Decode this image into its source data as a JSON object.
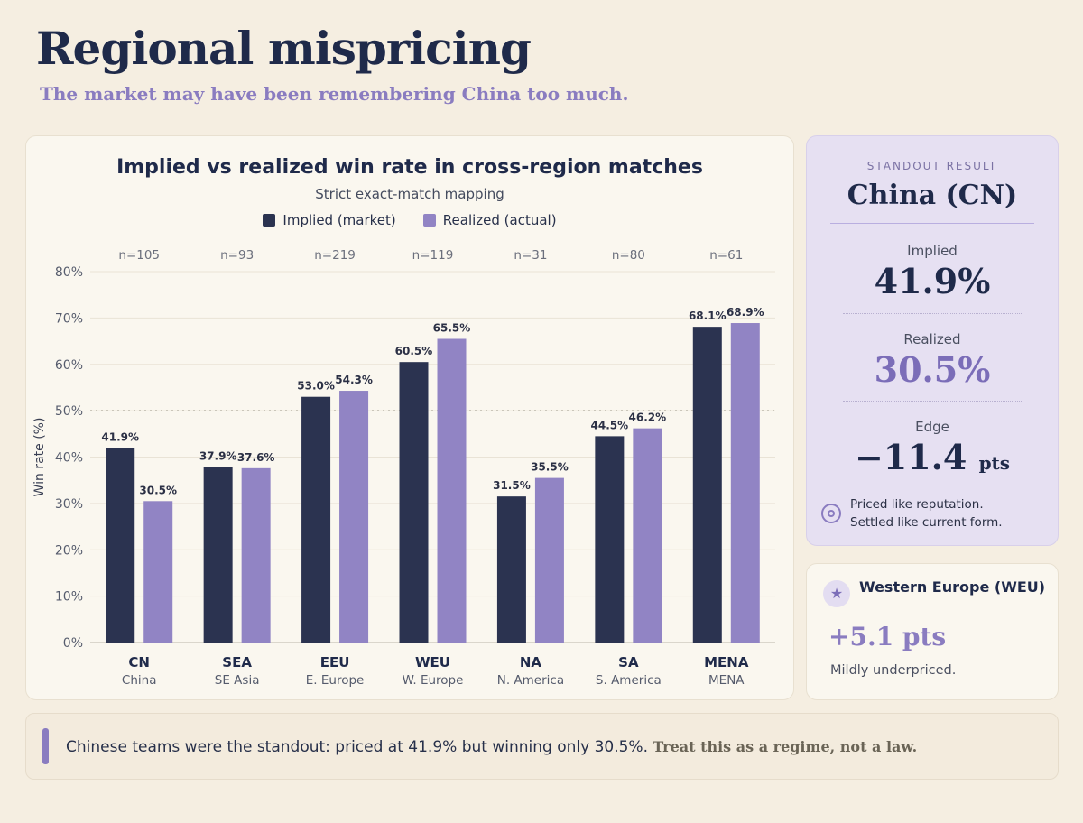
{
  "header": {
    "title": "Regional mispricing",
    "subtitle": "The market may have been remembering China too much."
  },
  "colors": {
    "implied": "#2b3350",
    "realized": "#9184c4",
    "accent": "#8a7cc0",
    "background": "#f5eee1"
  },
  "chart_data": {
    "type": "bar",
    "title": "Implied vs realized win rate in cross-region matches",
    "subtitle": "Strict exact-match mapping",
    "ylabel": "Win rate (%)",
    "ylim": [
      0,
      80
    ],
    "yticks": [
      "0%",
      "10%",
      "20%",
      "30%",
      "40%",
      "50%",
      "60%",
      "70%",
      "80%"
    ],
    "reference_line": 50,
    "grid": true,
    "legend_placement": "top-center",
    "categories": [
      "CN",
      "SEA",
      "EEU",
      "WEU",
      "NA",
      "SA",
      "MENA"
    ],
    "category_names": [
      "China",
      "SE Asia",
      "E. Europe",
      "W. Europe",
      "N. America",
      "S. America",
      "MENA"
    ],
    "sample_sizes": [
      "n=105",
      "n=93",
      "n=219",
      "n=119",
      "n=31",
      "n=80",
      "n=61"
    ],
    "series": [
      {
        "name": "Implied (market)",
        "values": [
          41.9,
          37.9,
          53.0,
          60.5,
          31.5,
          44.5,
          68.1
        ],
        "labels": [
          "41.9%",
          "37.9%",
          "53.0%",
          "60.5%",
          "31.5%",
          "44.5%",
          "68.1%"
        ]
      },
      {
        "name": "Realized (actual)",
        "values": [
          30.5,
          37.6,
          54.3,
          65.5,
          35.5,
          46.2,
          68.9
        ],
        "labels": [
          "30.5%",
          "37.6%",
          "54.3%",
          "65.5%",
          "35.5%",
          "46.2%",
          "68.9%"
        ]
      }
    ]
  },
  "standout": {
    "label": "STANDOUT RESULT",
    "name": "China (CN)",
    "implied_label": "Implied",
    "implied_value": "41.9%",
    "realized_label": "Realized",
    "realized_value": "30.5%",
    "edge_label": "Edge",
    "edge_value": "−11.4",
    "edge_unit": "pts",
    "note_line1": "Priced like reputation.",
    "note_line2": "Settled like current form."
  },
  "weu_card": {
    "name": "Western Europe (WEU)",
    "value": "+5.1 pts",
    "note": "Mildly underpriced."
  },
  "footer": {
    "text": "Chinese teams were the standout: priced at 41.9% but winning only 30.5%.",
    "emphasis": "Treat this as a regime, not a law."
  }
}
